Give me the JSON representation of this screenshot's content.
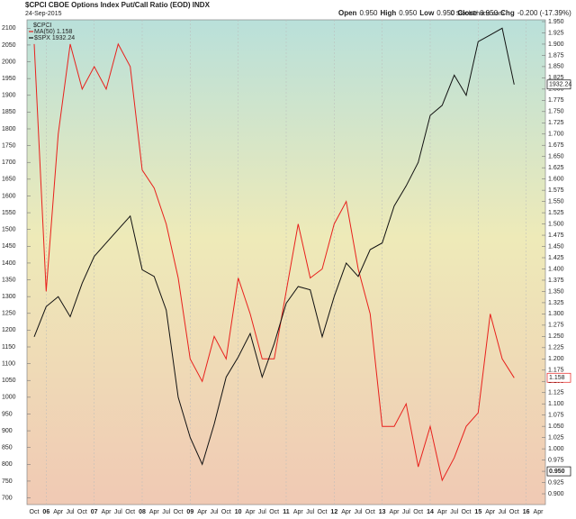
{
  "chart_data": {
    "type": "line",
    "title": "$CPCI CBOE Options Index Put/Call Ratio (EOD) INDX",
    "date": "24-Sep-2015",
    "quote": {
      "open_label": "Open",
      "open": "0.950",
      "high_label": "High",
      "high": "0.950",
      "low_label": "Low",
      "low": "0.950",
      "close_label": "Close",
      "close": "0.950",
      "chg_label": "Chg",
      "chg": "-0.200 (-17.39%)"
    },
    "source": "© StockCharts.com",
    "legend_title": "$CPCI",
    "categories": [
      "Oct",
      "06",
      "Apr",
      "Jul",
      "Oct",
      "07",
      "Apr",
      "Jul",
      "Oct",
      "08",
      "Apr",
      "Jul",
      "Oct",
      "09",
      "Apr",
      "Jul",
      "Oct",
      "10",
      "Apr",
      "Jul",
      "Oct",
      "11",
      "Apr",
      "Jul",
      "Oct",
      "12",
      "Apr",
      "Jul",
      "Oct",
      "13",
      "Apr",
      "Jul",
      "Oct",
      "14",
      "Apr",
      "Jul",
      "Oct",
      "15",
      "Apr",
      "Jul",
      "Oct",
      "16",
      "Apr"
    ],
    "series": [
      {
        "name": "MA(50) 1.158",
        "color": "#e8201c",
        "axis": "y2",
        "values": [
          1.9,
          1.35,
          1.7,
          1.9,
          1.8,
          1.85,
          1.8,
          1.9,
          1.85,
          1.62,
          1.58,
          1.5,
          1.38,
          1.2,
          1.15,
          1.25,
          1.2,
          1.38,
          1.3,
          1.2,
          1.2,
          1.35,
          1.5,
          1.38,
          1.4,
          1.5,
          1.55,
          1.4,
          1.3,
          1.05,
          1.05,
          1.1,
          0.96,
          1.05,
          0.93,
          0.98,
          1.05,
          1.08,
          1.3,
          1.2,
          1.158,
          null,
          null
        ]
      },
      {
        "name": "$SPX 1932.24",
        "color": "#111111",
        "values": [
          1180,
          1270,
          1300,
          1240,
          1340,
          1420,
          1460,
          1500,
          1540,
          1380,
          1360,
          1260,
          1000,
          880,
          800,
          920,
          1060,
          1120,
          1190,
          1060,
          1160,
          1280,
          1330,
          1320,
          1180,
          1300,
          1400,
          1360,
          1440,
          1460,
          1570,
          1630,
          1700,
          1840,
          1870,
          1960,
          1900,
          2060,
          2080,
          2100,
          1932.24,
          null,
          null
        ]
      }
    ],
    "close_marker": {
      "value": 0.95,
      "label": "0.950"
    },
    "ylim": [
      680,
      2125
    ],
    "yticks": [
      700,
      750,
      800,
      850,
      900,
      950,
      1000,
      1050,
      1100,
      1150,
      1200,
      1250,
      1300,
      1350,
      1400,
      1450,
      1500,
      1550,
      1600,
      1650,
      1700,
      1750,
      1800,
      1850,
      1900,
      1950,
      2000,
      2050,
      2100
    ],
    "y2lim": [
      0.876,
      1.954
    ],
    "y2ticks": [
      {
        "value": 0.9,
        "label": "0.900"
      },
      {
        "value": 0.925,
        "label": "0.925"
      },
      {
        "value": 0.95,
        "label": "0.950"
      },
      {
        "value": 0.975,
        "label": "0.975"
      },
      {
        "value": 1.0,
        "label": "1.000"
      },
      {
        "value": 1.025,
        "label": "1.025"
      },
      {
        "value": 1.05,
        "label": "1.050"
      },
      {
        "value": 1.075,
        "label": "1.075"
      },
      {
        "value": 1.1,
        "label": "1.100"
      },
      {
        "value": 1.125,
        "label": "1.125"
      },
      {
        "value": 1.15,
        "label": "1.150"
      },
      {
        "value": 1.175,
        "label": "1.175"
      },
      {
        "value": 1.2,
        "label": "1.200"
      },
      {
        "value": 1.225,
        "label": "1.225"
      },
      {
        "value": 1.25,
        "label": "1.250"
      },
      {
        "value": 1.275,
        "label": "1.275"
      },
      {
        "value": 1.3,
        "label": "1.300"
      },
      {
        "value": 1.325,
        "label": "1.325"
      },
      {
        "value": 1.35,
        "label": "1.350"
      },
      {
        "value": 1.375,
        "label": "1.375"
      },
      {
        "value": 1.4,
        "label": "1.400"
      },
      {
        "value": 1.425,
        "label": "1.425"
      },
      {
        "value": 1.45,
        "label": "1.450"
      },
      {
        "value": 1.475,
        "label": "1.475"
      },
      {
        "value": 1.5,
        "label": "1.500"
      },
      {
        "value": 1.525,
        "label": "1.525"
      },
      {
        "value": 1.55,
        "label": "1.550"
      },
      {
        "value": 1.575,
        "label": "1.575"
      },
      {
        "value": 1.6,
        "label": "1.600"
      },
      {
        "value": 1.625,
        "label": "1.625"
      },
      {
        "value": 1.65,
        "label": "1.650"
      },
      {
        "value": 1.675,
        "label": "1.675"
      },
      {
        "value": 1.7,
        "label": "1.700"
      },
      {
        "value": 1.725,
        "label": "1.725"
      },
      {
        "value": 1.75,
        "label": "1.750"
      },
      {
        "value": 1.775,
        "label": "1.775"
      },
      {
        "value": 1.8,
        "label": "1.800"
      },
      {
        "value": 1.825,
        "label": "1.825"
      },
      {
        "value": 1.85,
        "label": "1.850"
      },
      {
        "value": 1.875,
        "label": "1.875"
      },
      {
        "value": 1.9,
        "label": "1.900"
      },
      {
        "value": 1.925,
        "label": "1.925"
      },
      {
        "value": 1.95,
        "label": "1.950"
      }
    ],
    "grid": true
  }
}
